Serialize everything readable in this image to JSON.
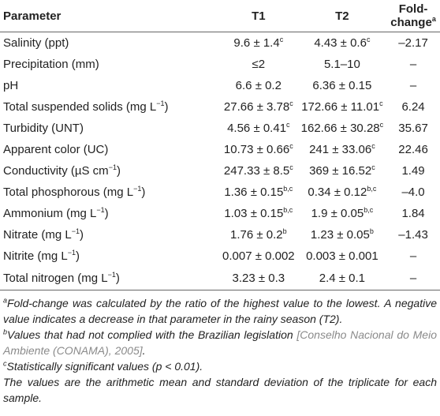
{
  "table": {
    "header": [
      [
        "Parameter"
      ],
      [
        "T1"
      ],
      [
        "T2"
      ],
      [
        "Fold-change",
        {
          "sup": "a"
        }
      ]
    ],
    "rows": [
      [
        [
          "Salinity (ppt)"
        ],
        [
          "9.6 ± 1.4",
          {
            "sup": "c"
          }
        ],
        [
          "4.43 ± 0.6",
          {
            "sup": "c"
          }
        ],
        [
          "–2.17"
        ]
      ],
      [
        [
          "Precipitation (mm)"
        ],
        [
          "≤2"
        ],
        [
          "5.1–10"
        ],
        [
          "–"
        ]
      ],
      [
        [
          "pH"
        ],
        [
          "6.6 ± 0.2"
        ],
        [
          "6.36 ± 0.15"
        ],
        [
          "–"
        ]
      ],
      [
        [
          "Total suspended solids (mg L",
          {
            "sup": "−1"
          },
          ")"
        ],
        [
          "27.66 ± 3.78",
          {
            "sup": "c"
          }
        ],
        [
          "172.66 ± 11.01",
          {
            "sup": "c"
          }
        ],
        [
          "6.24"
        ]
      ],
      [
        [
          "Turbidity (UNT)"
        ],
        [
          "4.56 ± 0.41",
          {
            "sup": "c"
          }
        ],
        [
          "162.66 ± 30.28",
          {
            "sup": "c"
          }
        ],
        [
          "35.67"
        ]
      ],
      [
        [
          "Apparent color (UC)"
        ],
        [
          "10.73 ± 0.66",
          {
            "sup": "c"
          }
        ],
        [
          "241 ± 33.06",
          {
            "sup": "c"
          }
        ],
        [
          "22.46"
        ]
      ],
      [
        [
          "Conductivity (µS cm",
          {
            "sup": "−1"
          },
          ")"
        ],
        [
          "247.33 ± 8.5",
          {
            "sup": "c"
          }
        ],
        [
          "369 ± 16.52",
          {
            "sup": "c"
          }
        ],
        [
          "1.49"
        ]
      ],
      [
        [
          "Total phosphorous (mg L",
          {
            "sup": "−1"
          },
          ")"
        ],
        [
          "1.36 ± 0.15",
          {
            "sup": "b,c"
          }
        ],
        [
          "0.34 ± 0.12",
          {
            "sup": "b,c"
          }
        ],
        [
          "–4.0"
        ]
      ],
      [
        [
          "Ammonium (mg L",
          {
            "sup": "−1"
          },
          ")"
        ],
        [
          "1.03 ± 0.15",
          {
            "sup": "b,c"
          }
        ],
        [
          "1.9 ± 0.05",
          {
            "sup": "b,c"
          }
        ],
        [
          "1.84"
        ]
      ],
      [
        [
          "Nitrate (mg L",
          {
            "sup": "−1"
          },
          ")"
        ],
        [
          "1.76 ± 0.2",
          {
            "sup": "b"
          }
        ],
        [
          "1.23 ± 0.05",
          {
            "sup": "b"
          }
        ],
        [
          "–1.43"
        ]
      ],
      [
        [
          "Nitrite (mg L",
          {
            "sup": "−1"
          },
          ")"
        ],
        [
          "0.007 ± 0.002"
        ],
        [
          "0.003 ± 0.001"
        ],
        [
          "–"
        ]
      ],
      [
        [
          "Total nitrogen (mg L",
          {
            "sup": "−1"
          },
          ")"
        ],
        [
          "3.23 ± 0.3"
        ],
        [
          "2.4 ± 0.1"
        ],
        [
          "–"
        ]
      ]
    ]
  },
  "footnotes": [
    [
      {
        "sup": "a"
      },
      "Fold-change was calculated by the ratio of the highest value to the lowest. A negative value indicates a decrease in that parameter in the rainy season (T2)."
    ],
    [
      {
        "sup": "b"
      },
      "Values that had not complied with the Brazilian legislation ",
      {
        "link": "[Conselho Nacional do Meio Ambiente (CONAMA), 2005]"
      },
      "."
    ],
    [
      {
        "sup": "c"
      },
      "Statistically significant values (p < 0.01)."
    ],
    [
      "The values are the arithmetic mean and standard deviation of the triplicate for each sample."
    ]
  ]
}
